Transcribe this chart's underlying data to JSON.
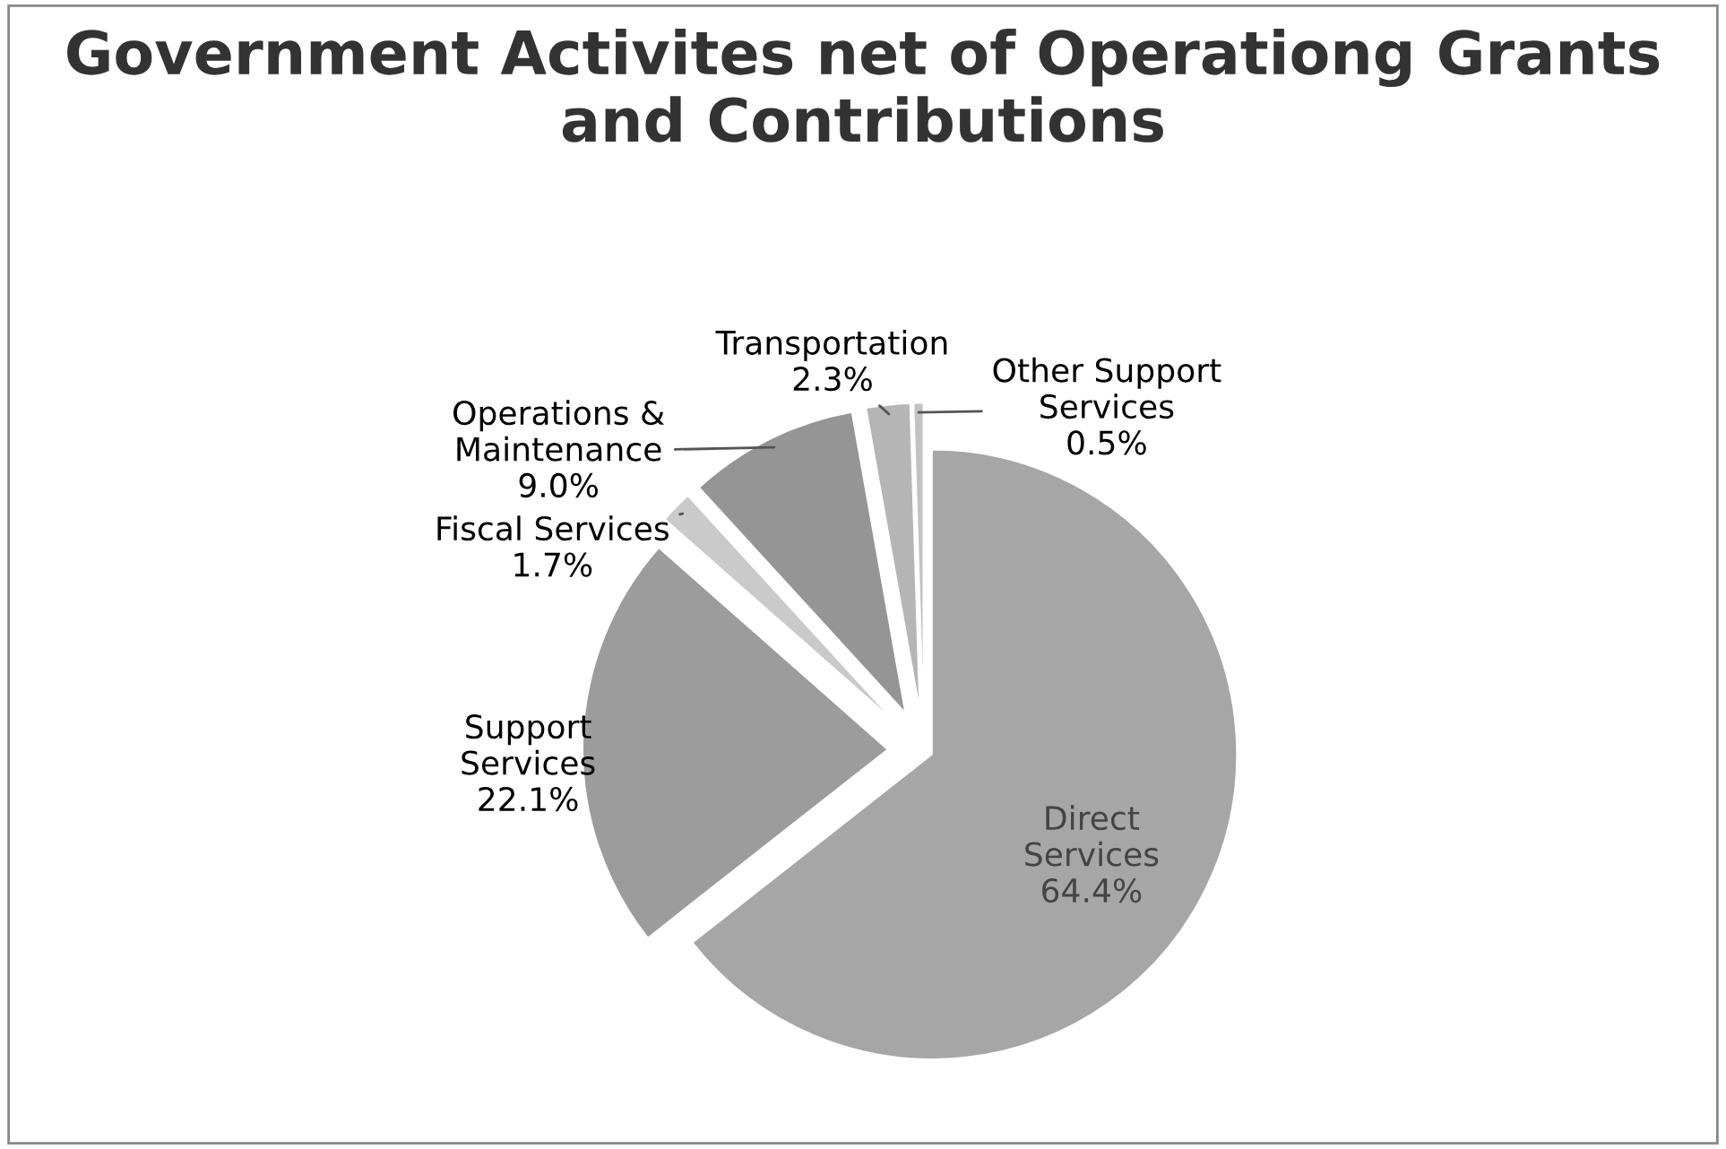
{
  "chart_data": {
    "type": "pie",
    "title": "Government Activites net of Operationg Grants and Contributions",
    "categories": [
      "Direct Services",
      "Support Services",
      "Fiscal Services",
      "Operations & Maintenance",
      "Transportation",
      "Other Support Services"
    ],
    "values": [
      64.4,
      22.1,
      1.7,
      9.0,
      2.3,
      0.5
    ],
    "value_labels": [
      "64.4%",
      "22.1%",
      "1.7%",
      "9.0%",
      "2.3%",
      "0.5%"
    ],
    "colors": [
      "#a6a6a6",
      "#9c9c9c",
      "#cacaca",
      "#959595",
      "#b5b5b5",
      "#c2c2c2"
    ],
    "legend": false
  }
}
